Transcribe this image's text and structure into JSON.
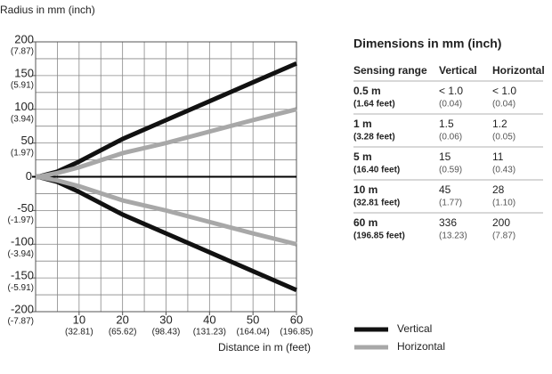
{
  "chart_data": {
    "type": "line",
    "y_axis_label": "Radius in mm (inch)",
    "x_axis_label": "Distance in m (feet)",
    "x": [
      0,
      1,
      5,
      10,
      20,
      30,
      40,
      50,
      60
    ],
    "series": [
      {
        "name": "Vertical",
        "color": "#111111",
        "values": [
          0,
          0.75,
          7.5,
          22.5,
          56,
          84,
          112,
          140,
          168
        ]
      },
      {
        "name": "Horizontal",
        "color": "#a8a8a8",
        "values": [
          0,
          0.6,
          5.5,
          14,
          35,
          50,
          67,
          84,
          100
        ]
      }
    ],
    "mirror": true,
    "xlim": [
      0,
      60
    ],
    "ylim": [
      -200,
      200
    ],
    "xticks": [
      {
        "value": 10,
        "label": "10",
        "sublabel": "(32.81)"
      },
      {
        "value": 20,
        "label": "20",
        "sublabel": "(65.62)"
      },
      {
        "value": 30,
        "label": "30",
        "sublabel": "(98.43)"
      },
      {
        "value": 40,
        "label": "40",
        "sublabel": "(131.23)"
      },
      {
        "value": 50,
        "label": "50",
        "sublabel": "(164.04)"
      },
      {
        "value": 60,
        "label": "60",
        "sublabel": "(196.85)"
      }
    ],
    "yticks": [
      {
        "value": 200,
        "label": "200",
        "sublabel": "(7.87)"
      },
      {
        "value": 150,
        "label": "150",
        "sublabel": "(5.91)"
      },
      {
        "value": 100,
        "label": "100",
        "sublabel": "(3.94)"
      },
      {
        "value": 50,
        "label": "50",
        "sublabel": "(1.97)"
      },
      0,
      {
        "value": -50,
        "label": "-50",
        "sublabel": "(-1.97)"
      },
      {
        "value": -100,
        "label": "-100",
        "sublabel": "(-3.94)"
      },
      {
        "value": -150,
        "label": "-150",
        "sublabel": "(-5.91)"
      },
      {
        "value": -200,
        "label": "-200",
        "sublabel": "(-7.87)"
      }
    ],
    "x_gridlines": [
      5,
      10,
      15,
      20,
      25,
      30,
      35,
      40,
      45,
      50,
      55
    ],
    "y_gridlines": [
      175,
      150,
      125,
      100,
      75,
      50,
      25,
      -25,
      -50,
      -75,
      -100,
      -125,
      -150,
      -175
    ],
    "grid": true,
    "legend": "bottom-right"
  },
  "table": {
    "title": "Dimensions in mm (inch)",
    "header": [
      "Sensing range",
      "Vertical",
      "Horizontal"
    ],
    "rows": [
      [
        [
          "0.5 m",
          "(1.64 feet)"
        ],
        [
          "< 1.0",
          "(0.04)"
        ],
        [
          "< 1.0",
          "(0.04)"
        ]
      ],
      [
        [
          "1 m",
          "(3.28 feet)"
        ],
        [
          "1.5",
          "(0.06)"
        ],
        [
          "1.2",
          "(0.05)"
        ]
      ],
      [
        [
          "5 m",
          "(16.40 feet)"
        ],
        [
          "15",
          "(0.59)"
        ],
        [
          "11",
          "(0.43)"
        ]
      ],
      [
        [
          "10 m",
          "(32.81 feet)"
        ],
        [
          "45",
          "(1.77)"
        ],
        [
          "28",
          "(1.10)"
        ]
      ],
      [
        [
          "60 m",
          "(196.85 feet)"
        ],
        [
          "336",
          "(13.23)"
        ],
        [
          "200",
          "(7.87)"
        ]
      ]
    ]
  }
}
